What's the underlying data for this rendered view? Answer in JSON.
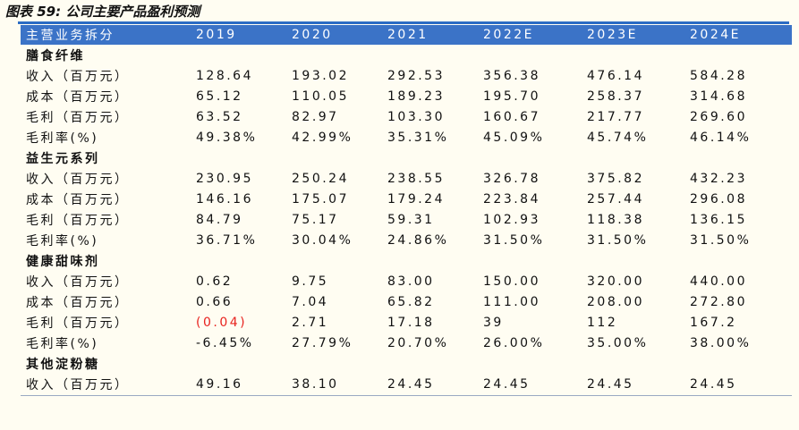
{
  "caption": "图表 59: 公司主要产品盈利预测",
  "columns": [
    "主营业务拆分",
    "2019",
    "2020",
    "2021",
    "2022E",
    "2023E",
    "2024E"
  ],
  "sections": [
    {
      "name": "膳食纤维",
      "rows": [
        {
          "label": "收入（百万元）",
          "values": [
            "128.64",
            "193.02",
            "292.53",
            "356.38",
            "476.14",
            "584.28"
          ]
        },
        {
          "label": "成本（百万元）",
          "values": [
            "65.12",
            "110.05",
            "189.23",
            "195.70",
            "258.37",
            "314.68"
          ]
        },
        {
          "label": "毛利（百万元）",
          "values": [
            "63.52",
            "82.97",
            "103.30",
            "160.67",
            "217.77",
            "269.60"
          ]
        },
        {
          "label": "毛利率(%)",
          "values": [
            "49.38%",
            "42.99%",
            "35.31%",
            "45.09%",
            "45.74%",
            "46.14%"
          ]
        }
      ]
    },
    {
      "name": "益生元系列",
      "rows": [
        {
          "label": "收入（百万元）",
          "values": [
            "230.95",
            "250.24",
            "238.55",
            "326.78",
            "375.82",
            "432.23"
          ]
        },
        {
          "label": "成本（百万元）",
          "values": [
            "146.16",
            "175.07",
            "179.24",
            "223.84",
            "257.44",
            "296.08"
          ]
        },
        {
          "label": "毛利（百万元）",
          "values": [
            "84.79",
            "75.17",
            "59.31",
            "102.93",
            "118.38",
            "136.15"
          ]
        },
        {
          "label": "毛利率(%)",
          "values": [
            "36.71%",
            "30.04%",
            "24.86%",
            "31.50%",
            "31.50%",
            "31.50%"
          ]
        }
      ]
    },
    {
      "name": "健康甜味剂",
      "rows": [
        {
          "label": "收入（百万元）",
          "values": [
            "0.62",
            "9.75",
            "83.00",
            "150.00",
            "320.00",
            "440.00"
          ]
        },
        {
          "label": "成本（百万元）",
          "values": [
            "0.66",
            "7.04",
            "65.82",
            "111.00",
            "208.00",
            "272.80"
          ]
        },
        {
          "label": "毛利（百万元）",
          "values": [
            "(0.04)",
            "2.71",
            "17.18",
            "39",
            "112",
            "167.2"
          ],
          "negative_index": 0
        },
        {
          "label": "毛利率(%)",
          "values": [
            "-6.45%",
            "27.79%",
            "20.70%",
            "26.00%",
            "35.00%",
            "38.00%"
          ]
        }
      ]
    },
    {
      "name": "其他淀粉糖",
      "rows": [
        {
          "label": "收入（百万元）",
          "values": [
            "49.16",
            "38.10",
            "24.45",
            "24.45",
            "24.45",
            "24.45"
          ]
        }
      ]
    }
  ],
  "colors": {
    "header_bg": "#3b73c7",
    "negative": "#e8231f",
    "page_bg": "#fffdf2"
  }
}
